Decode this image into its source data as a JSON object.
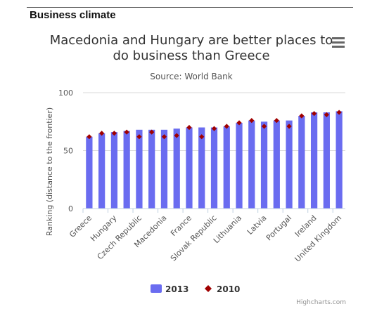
{
  "section": {
    "title": "Business climate"
  },
  "chart_data": {
    "type": "bar",
    "title_lines": [
      "Macedonia and Hungary are better places to",
      "do business than Greece"
    ],
    "subtitle": "Source: World Bank",
    "ylabel": "Ranking (distance to the frontier)",
    "xlabel": "",
    "ylim": [
      0,
      100
    ],
    "yticks": [
      0,
      50,
      100
    ],
    "grid": true,
    "legend_position": "bottom-center",
    "categories": [
      "Greece",
      "",
      "Hungary",
      "",
      "Czech Republic",
      "",
      "Macedonia",
      "",
      "France",
      "",
      "Slovak Republic",
      "",
      "Lithuania",
      "",
      "Latvia",
      "",
      "Portugal",
      "",
      "Ireland",
      "",
      "United Kingdom"
    ],
    "series": [
      {
        "name": "2013",
        "kind": "column",
        "color": "#6a6cf0",
        "values": [
          62,
          65,
          66,
          67,
          68,
          68,
          68,
          69,
          70,
          70,
          70,
          71,
          74,
          76,
          75,
          76,
          76,
          80,
          83,
          83,
          84
        ]
      },
      {
        "name": "2010",
        "kind": "marker",
        "marker": "diamond",
        "color": "#a00000",
        "values": [
          62,
          65,
          65,
          66,
          62,
          66,
          62,
          63,
          70,
          62,
          69,
          71,
          74,
          76,
          71,
          76,
          71,
          80,
          82,
          81,
          83
        ]
      }
    ]
  },
  "menu": {
    "icon": "hamburger-menu-icon"
  },
  "credits": "Highcharts.com"
}
